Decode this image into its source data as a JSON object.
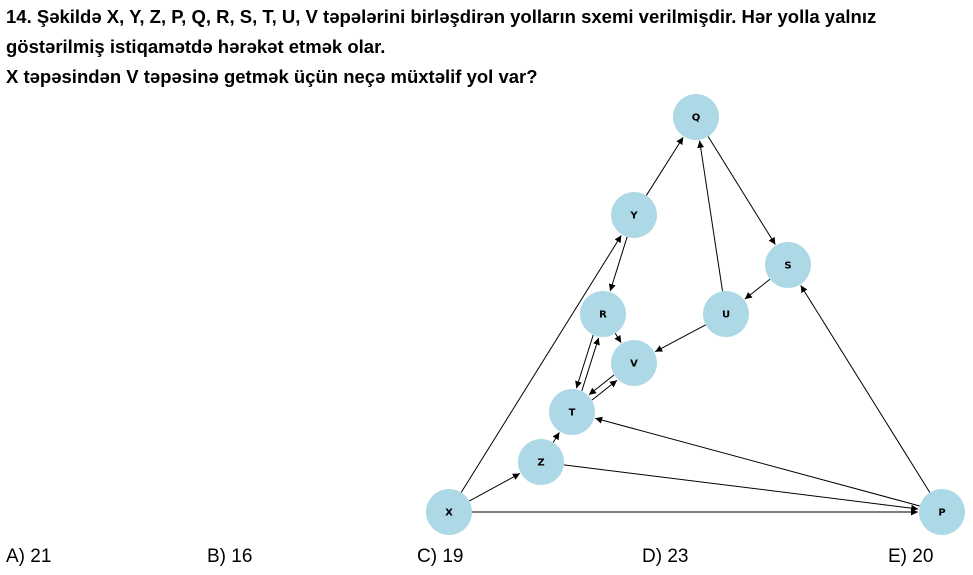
{
  "question": {
    "line1": "14. Şəkildə X, Y, Z, P, Q, R, S, T, U, V təpələrini birləşdirən yolların sxemi verilmişdir. Hər yolla yalnız",
    "line2": "göstərilmiş istiqamətdə hərəkət etmək olar.",
    "line3": "X təpəsindən V təpəsinə getmək üçün neçə müxtəlif yol var?"
  },
  "graph": {
    "node_color": "#add8e6",
    "edge_color": "#000000",
    "nodes": [
      "Q",
      "Y",
      "S",
      "R",
      "U",
      "V",
      "T",
      "Z",
      "X",
      "P"
    ],
    "edges": [
      [
        "X",
        "Y"
      ],
      [
        "X",
        "Z"
      ],
      [
        "X",
        "P"
      ],
      [
        "Y",
        "Q"
      ],
      [
        "Y",
        "R"
      ],
      [
        "Q",
        "S"
      ],
      [
        "S",
        "U"
      ],
      [
        "U",
        "Q"
      ],
      [
        "U",
        "V"
      ],
      [
        "R",
        "V"
      ],
      [
        "R",
        "T"
      ],
      [
        "T",
        "R"
      ],
      [
        "T",
        "V"
      ],
      [
        "V",
        "T"
      ],
      [
        "Z",
        "T"
      ],
      [
        "Z",
        "P"
      ],
      [
        "P",
        "T"
      ],
      [
        "P",
        "S"
      ]
    ]
  },
  "options": {
    "a": "A) 21",
    "b": "B) 16",
    "c": "C) 19",
    "d": "D) 23",
    "e": "E) 20"
  }
}
